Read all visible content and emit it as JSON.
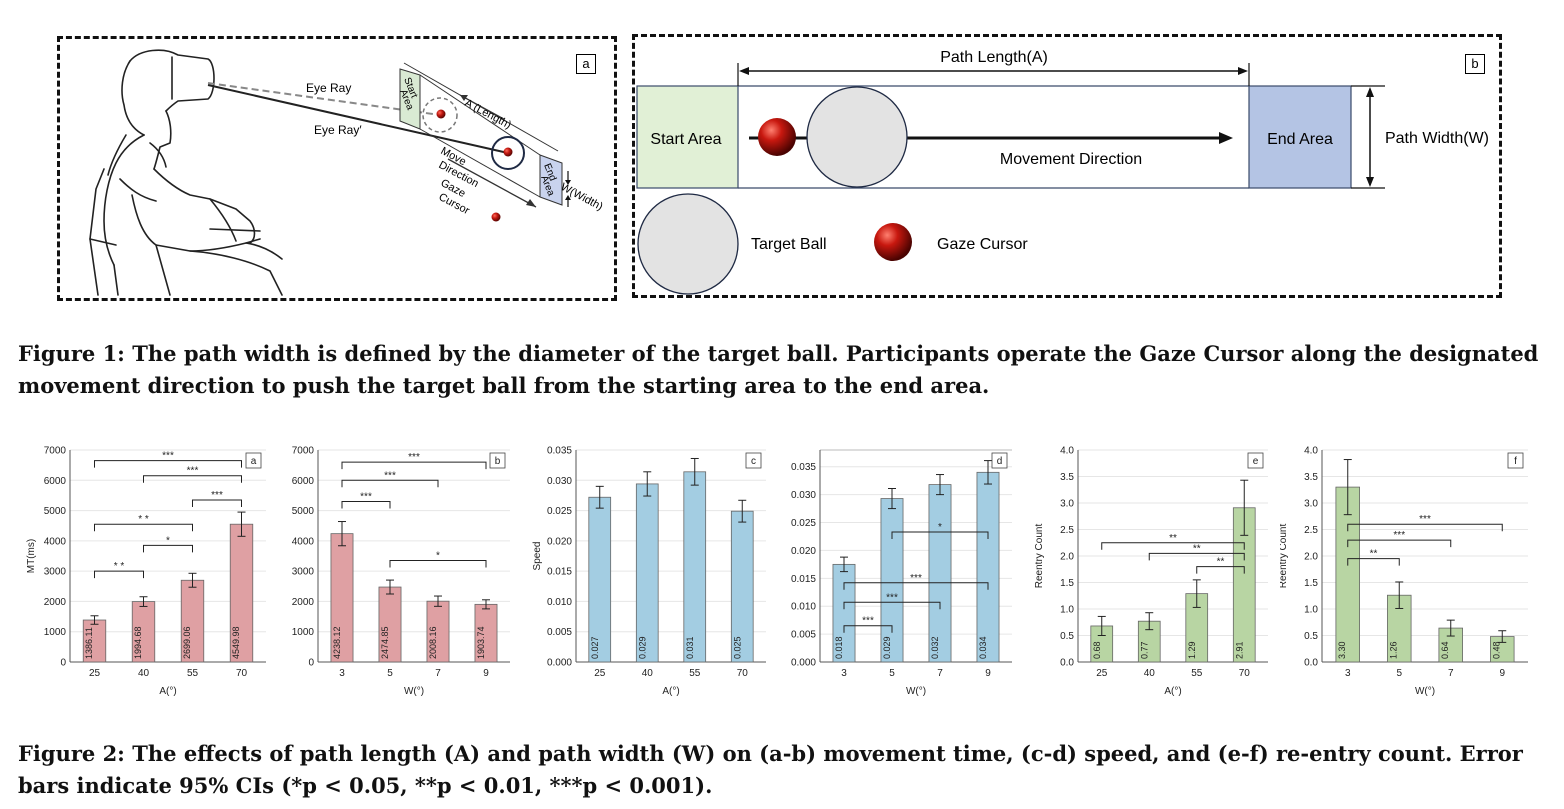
{
  "figure1": {
    "panel_a": {
      "label": "a",
      "eye_ray": "Eye Ray",
      "eye_ray_prime": "Eye Ray′",
      "start_area": [
        "Start",
        "Area"
      ],
      "end_area": [
        "End",
        "Area"
      ],
      "length": "A (Length)",
      "width": "W(Width)",
      "move_direction": [
        "Move",
        "Direction"
      ],
      "gaze_cursor": [
        "Gaze",
        "Cursor"
      ]
    },
    "panel_b": {
      "label": "b",
      "path_length": "Path Length(A)",
      "start_area": "Start Area",
      "end_area": "End Area",
      "path_width": "Path Width(W)",
      "movement_direction": "Movement Direction",
      "target_ball": "Target Ball",
      "gaze_cursor": "Gaze Cursor"
    },
    "caption": "Figure 1: The path width is defined by the diameter of the target ball. Participants operate the Gaze Cursor along the designated movement direction to push the target ball from the starting area to the end area."
  },
  "chart_data": [
    {
      "type": "bar",
      "label": "a",
      "ylabel": "MT(ms)",
      "xlabel": "A(°)",
      "categories": [
        "25",
        "40",
        "55",
        "70"
      ],
      "values": [
        1386.11,
        1994.68,
        2699.06,
        4549.98
      ],
      "value_labels": [
        "1386.11",
        "1994.68",
        "2699.06",
        "4549.98"
      ],
      "errors": [
        140,
        160,
        230,
        400
      ],
      "ylim": [
        0,
        7000
      ],
      "yticks": [
        "0",
        "1000",
        "2000",
        "3000",
        "4000",
        "5000",
        "6000",
        "7000"
      ],
      "color": "#dfa0a3",
      "brackets": [
        {
          "from": 0,
          "to": 1,
          "y": 3000,
          "label": "* *"
        },
        {
          "from": 1,
          "to": 2,
          "y": 3850,
          "label": "*"
        },
        {
          "from": 0,
          "to": 2,
          "y": 4550,
          "label": "* *"
        },
        {
          "from": 2,
          "to": 3,
          "y": 5350,
          "label": "***"
        },
        {
          "from": 1,
          "to": 3,
          "y": 6150,
          "label": "***"
        },
        {
          "from": 0,
          "to": 3,
          "y": 6650,
          "label": "***"
        }
      ]
    },
    {
      "type": "bar",
      "label": "b",
      "ylabel": "",
      "xlabel": "W(°)",
      "categories": [
        "3",
        "5",
        "7",
        "9"
      ],
      "values": [
        4238.12,
        2474.85,
        2008.16,
        1903.74
      ],
      "value_labels": [
        "4238.12",
        "2474.85",
        "2008.16",
        "1903.74"
      ],
      "errors": [
        400,
        230,
        170,
        150
      ],
      "ylim": [
        0,
        7000
      ],
      "yticks": [
        "0",
        "1000",
        "2000",
        "3000",
        "4000",
        "5000",
        "6000",
        "7000"
      ],
      "color": "#dfa0a3",
      "brackets": [
        {
          "from": 1,
          "to": 3,
          "y": 3350,
          "label": "*"
        },
        {
          "from": 0,
          "to": 1,
          "y": 5300,
          "label": "***"
        },
        {
          "from": 0,
          "to": 2,
          "y": 6000,
          "label": "***"
        },
        {
          "from": 0,
          "to": 3,
          "y": 6600,
          "label": "***"
        }
      ]
    },
    {
      "type": "bar",
      "label": "c",
      "ylabel": "Speed",
      "xlabel": "A(°)",
      "categories": [
        "25",
        "40",
        "55",
        "70"
      ],
      "values": [
        0.0272,
        0.0294,
        0.0314,
        0.0249
      ],
      "value_labels": [
        "0.027",
        "0.029",
        "0.031",
        "0.025"
      ],
      "errors": [
        0.0018,
        0.002,
        0.0022,
        0.0018
      ],
      "ylim": [
        0,
        0.035
      ],
      "yticks": [
        "0.000",
        "0.005",
        "0.010",
        "0.015",
        "0.020",
        "0.025",
        "0.030",
        "0.035"
      ],
      "color": "#a3cde2",
      "brackets": []
    },
    {
      "type": "bar",
      "label": "d",
      "ylabel": "",
      "xlabel": "W(°)",
      "categories": [
        "3",
        "5",
        "7",
        "9"
      ],
      "values": [
        0.0175,
        0.0293,
        0.0318,
        0.034
      ],
      "value_labels": [
        "0.018",
        "0.029",
        "0.032",
        "0.034"
      ],
      "errors": [
        0.0013,
        0.0018,
        0.0018,
        0.0021
      ],
      "ylim": [
        0,
        0.038
      ],
      "yticks": [
        "0.000",
        "0.005",
        "0.010",
        "0.015",
        "0.020",
        "0.025",
        "0.030",
        "0.035"
      ],
      "color": "#a3cde2",
      "brackets": [
        {
          "from": 0,
          "to": 1,
          "y": 0.0065,
          "label": "***"
        },
        {
          "from": 0,
          "to": 2,
          "y": 0.0107,
          "label": "***"
        },
        {
          "from": 0,
          "to": 3,
          "y": 0.0142,
          "label": "***"
        },
        {
          "from": 1,
          "to": 3,
          "y": 0.0233,
          "label": "*"
        }
      ]
    },
    {
      "type": "bar",
      "label": "e",
      "ylabel": "Reentry Count",
      "xlabel": "A(°)",
      "categories": [
        "25",
        "40",
        "55",
        "70"
      ],
      "values": [
        0.68,
        0.77,
        1.29,
        2.91
      ],
      "value_labels": [
        "0.68",
        "0.77",
        "1.29",
        "2.91"
      ],
      "errors": [
        0.18,
        0.16,
        0.26,
        0.52
      ],
      "ylim": [
        0,
        4
      ],
      "yticks": [
        "0.0",
        "0.5",
        "1.0",
        "1.5",
        "2.0",
        "2.5",
        "3.0",
        "3.5",
        "4.0"
      ],
      "color": "#b8d5a3",
      "brackets": [
        {
          "from": 2,
          "to": 3,
          "y": 1.8,
          "label": "**"
        },
        {
          "from": 1,
          "to": 3,
          "y": 2.05,
          "label": "**"
        },
        {
          "from": 0,
          "to": 3,
          "y": 2.25,
          "label": "**"
        }
      ]
    },
    {
      "type": "bar",
      "label": "f",
      "ylabel": "Reentry Count",
      "xlabel": "W(°)",
      "categories": [
        "3",
        "5",
        "7",
        "9"
      ],
      "values": [
        3.3,
        1.26,
        0.64,
        0.48
      ],
      "value_labels": [
        "3.30",
        "1.26",
        "0.64",
        "0.48"
      ],
      "errors": [
        0.52,
        0.25,
        0.15,
        0.11
      ],
      "ylim": [
        0,
        4
      ],
      "yticks": [
        "0.0",
        "0.5",
        "1.0",
        "1.5",
        "2.0",
        "2.5",
        "3.0",
        "3.5",
        "4.0"
      ],
      "color": "#b8d5a3",
      "brackets": [
        {
          "from": 0,
          "to": 1,
          "y": 1.95,
          "label": "**"
        },
        {
          "from": 0,
          "to": 2,
          "y": 2.3,
          "label": "***"
        },
        {
          "from": 0,
          "to": 3,
          "y": 2.6,
          "label": "***"
        }
      ]
    }
  ],
  "figure2": {
    "caption": "Figure 2: The effects of path length (A) and path width (W) on (a-b) movement time, (c-d) speed, and (e-f) re-entry count. Error bars indicate 95% CIs (*p < 0.05, **p < 0.01, ***p < 0.001)."
  }
}
